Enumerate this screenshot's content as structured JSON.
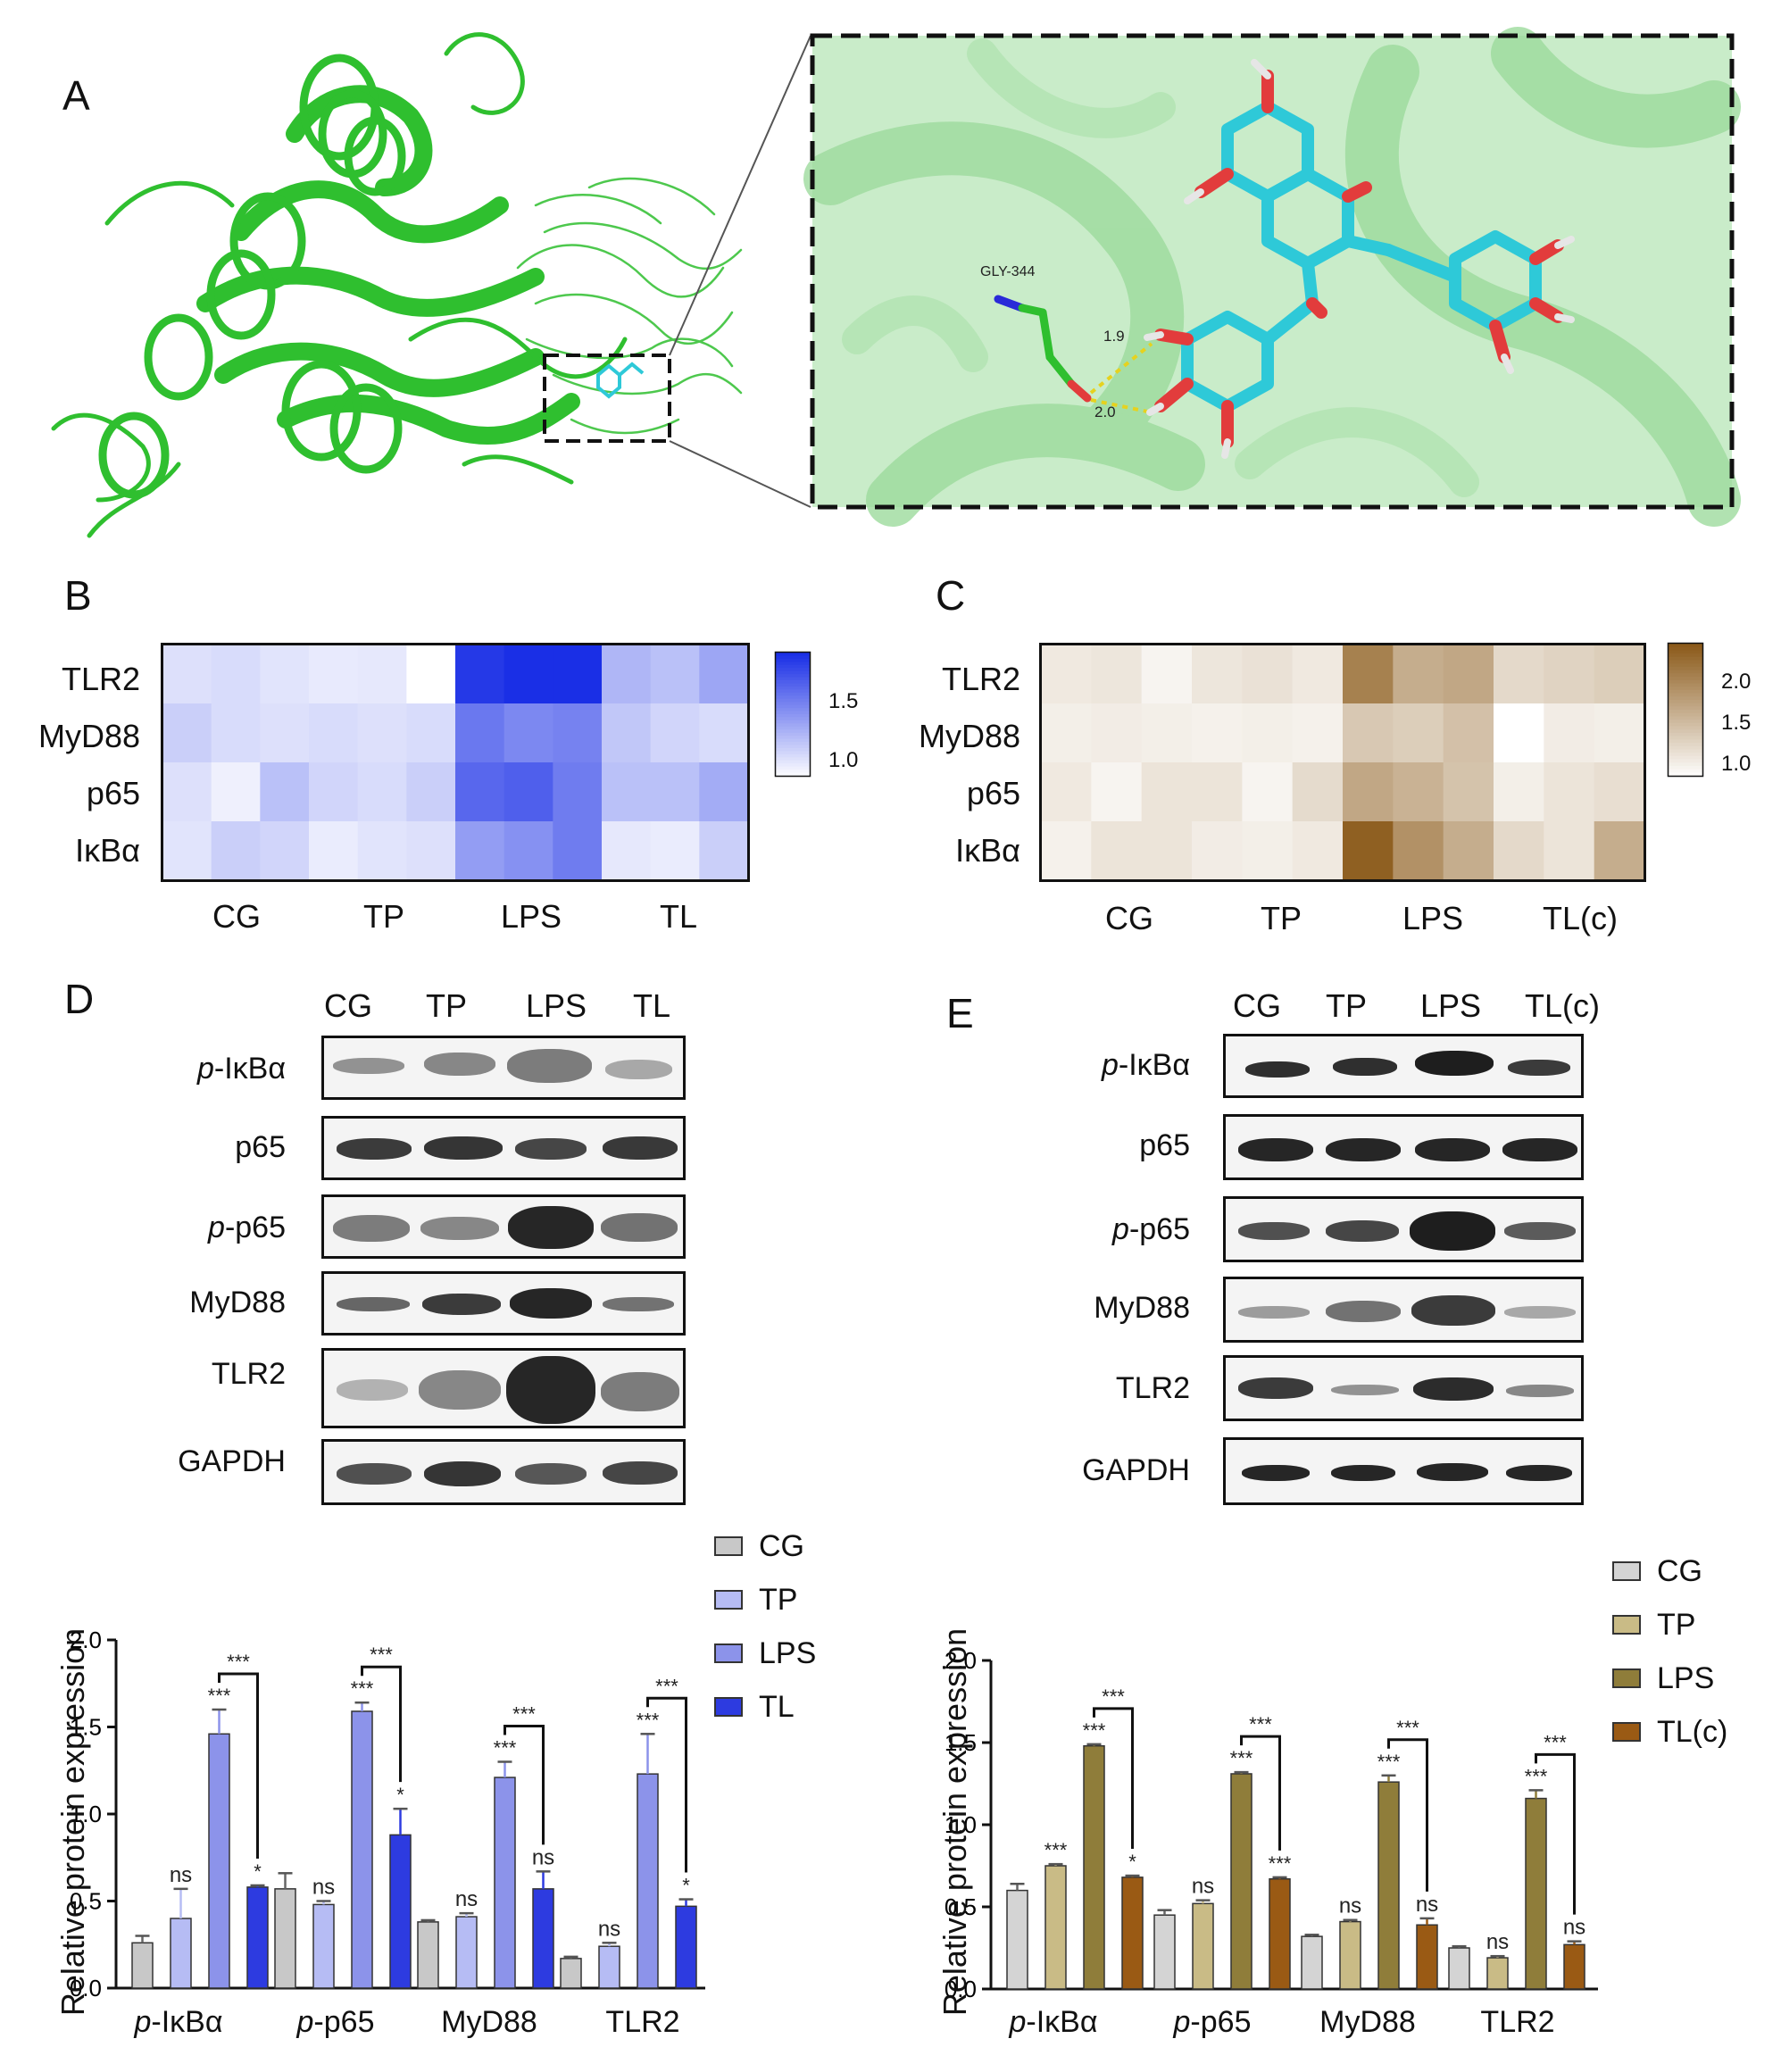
{
  "panels": {
    "a": "A",
    "b": "B",
    "c": "C",
    "d": "D",
    "e": "E"
  },
  "structure": {
    "residue_label": "GLY-344",
    "distance_1": "1.9",
    "distance_2": "2.0"
  },
  "heatmap_b": {
    "rows": [
      "TLR2",
      "MyD88",
      "p65",
      "IκBα"
    ],
    "groups": [
      "CG",
      "TP",
      "LPS",
      "TL"
    ],
    "values": [
      [
        1.1,
        1.12,
        1.08,
        1.05,
        1.06,
        0.95,
        1.9,
        1.95,
        1.95,
        1.3,
        1.25,
        1.38
      ],
      [
        1.18,
        1.12,
        1.1,
        1.12,
        1.1,
        1.12,
        1.6,
        1.52,
        1.55,
        1.22,
        1.15,
        1.12
      ],
      [
        1.1,
        1.02,
        1.25,
        1.15,
        1.12,
        1.18,
        1.68,
        1.72,
        1.58,
        1.25,
        1.25,
        1.35
      ],
      [
        1.08,
        1.18,
        1.15,
        1.04,
        1.08,
        1.1,
        1.42,
        1.48,
        1.58,
        1.06,
        1.04,
        1.18
      ]
    ],
    "colorbar_ticks": [
      "1.5",
      "1.0"
    ],
    "colorbar_range": [
      0.95,
      1.95
    ],
    "color": "#1a2fe6"
  },
  "heatmap_c": {
    "rows": [
      "TLR2",
      "MyD88",
      "p65",
      "IκBα"
    ],
    "groups": [
      "CG",
      "TP",
      "LPS",
      "TL(c)"
    ],
    "values": [
      [
        1.15,
        1.18,
        1.05,
        1.18,
        1.22,
        1.15,
        2.1,
        1.7,
        1.75,
        1.3,
        1.35,
        1.4
      ],
      [
        1.1,
        1.12,
        1.1,
        1.08,
        1.1,
        1.08,
        1.45,
        1.4,
        1.52,
        0.95,
        1.12,
        1.1
      ],
      [
        1.15,
        1.05,
        1.2,
        1.2,
        1.05,
        1.28,
        1.75,
        1.65,
        1.5,
        1.1,
        1.2,
        1.25
      ],
      [
        1.08,
        1.2,
        1.2,
        1.12,
        1.1,
        1.15,
        2.4,
        1.95,
        1.7,
        1.3,
        1.2,
        1.7
      ]
    ],
    "colorbar_ticks": [
      "2.0",
      "1.5",
      "1.0"
    ],
    "colorbar_range": [
      0.95,
      2.45
    ],
    "color": "#8b5a1a"
  },
  "blot_d": {
    "columns": [
      "CG",
      "TP",
      "LPS",
      "TL"
    ],
    "proteins": [
      {
        "italic": "p",
        "name": "-IκBα"
      },
      {
        "italic": "",
        "name": "p65"
      },
      {
        "italic": "p",
        "name": "-p65"
      },
      {
        "italic": "",
        "name": "MyD88"
      },
      {
        "italic": "",
        "name": "TLR2"
      },
      {
        "italic": "",
        "name": "GAPDH"
      }
    ]
  },
  "blot_e": {
    "columns": [
      "CG",
      "TP",
      "LPS",
      "TL(c)"
    ],
    "proteins": [
      {
        "italic": "p",
        "name": "-IκBα"
      },
      {
        "italic": "",
        "name": "p65"
      },
      {
        "italic": "p",
        "name": "-p65"
      },
      {
        "italic": "",
        "name": "MyD88"
      },
      {
        "italic": "",
        "name": "TLR2"
      },
      {
        "italic": "",
        "name": "GAPDH"
      }
    ]
  },
  "chart_data": [
    {
      "type": "bar",
      "panel": "D",
      "ylabel": "Relative protein expression",
      "ylim": [
        0,
        2.0
      ],
      "yticks": [
        "0.0",
        "0.5",
        "1.0",
        "1.5",
        "2.0"
      ],
      "categories": [
        {
          "italic": "p",
          "name": "-IκBα"
        },
        {
          "italic": "p",
          "name": "-p65"
        },
        {
          "italic": "",
          "name": "MyD88"
        },
        {
          "italic": "",
          "name": "TLR2"
        }
      ],
      "series": [
        {
          "name": "CG",
          "color": "#c8c8c8",
          "values": [
            0.26,
            0.57,
            0.38,
            0.17
          ],
          "errors": [
            0.04,
            0.09,
            0.01,
            0.01
          ],
          "sig": [
            "",
            "",
            "",
            ""
          ]
        },
        {
          "name": "TP",
          "color": "#b6bcf4",
          "values": [
            0.4,
            0.48,
            0.41,
            0.24
          ],
          "errors": [
            0.17,
            0.02,
            0.02,
            0.02
          ],
          "sig": [
            "ns",
            "ns",
            "ns",
            "ns"
          ]
        },
        {
          "name": "LPS",
          "color": "#8c93ea",
          "values": [
            1.46,
            1.59,
            1.21,
            1.23
          ],
          "errors": [
            0.14,
            0.05,
            0.09,
            0.23
          ],
          "sig": [
            "***",
            "***",
            "***",
            "***"
          ]
        },
        {
          "name": "TL",
          "color": "#2d3be0",
          "values": [
            0.58,
            0.88,
            0.57,
            0.47
          ],
          "errors": [
            0.01,
            0.15,
            0.1,
            0.04
          ],
          "sig": [
            "*",
            "*",
            "ns",
            "*"
          ]
        }
      ],
      "brackets": [
        "***",
        "***",
        "***",
        "***"
      ]
    },
    {
      "type": "bar",
      "panel": "E",
      "ylabel": "Relative protein expression",
      "ylim": [
        0,
        2.0
      ],
      "yticks": [
        "0.0",
        "0.5",
        "1.0",
        "1.5",
        "2.0"
      ],
      "categories": [
        {
          "italic": "p",
          "name": "-IκBα"
        },
        {
          "italic": "p",
          "name": "-p65"
        },
        {
          "italic": "",
          "name": "MyD88"
        },
        {
          "italic": "",
          "name": "TLR2"
        }
      ],
      "series": [
        {
          "name": "CG",
          "color": "#d4d4d4",
          "values": [
            0.6,
            0.45,
            0.32,
            0.25
          ],
          "errors": [
            0.04,
            0.03,
            0.01,
            0.01
          ],
          "sig": [
            "",
            "",
            "",
            ""
          ]
        },
        {
          "name": "TP",
          "color": "#c9bb86",
          "values": [
            0.75,
            0.52,
            0.41,
            0.19
          ],
          "errors": [
            0.01,
            0.02,
            0.01,
            0.01
          ],
          "sig": [
            "***",
            "ns",
            "ns",
            "ns"
          ]
        },
        {
          "name": "LPS",
          "color": "#8f7d3a",
          "values": [
            1.48,
            1.31,
            1.26,
            1.16
          ],
          "errors": [
            0.01,
            0.01,
            0.04,
            0.05
          ],
          "sig": [
            "***",
            "***",
            "***",
            "***"
          ]
        },
        {
          "name": "TL(c)",
          "color": "#9a5a14",
          "values": [
            0.68,
            0.67,
            0.39,
            0.27
          ],
          "errors": [
            0.01,
            0.01,
            0.04,
            0.02
          ],
          "sig": [
            "*",
            "***",
            "ns",
            "ns"
          ]
        }
      ],
      "brackets": [
        "***",
        "***",
        "***",
        "***"
      ]
    }
  ]
}
